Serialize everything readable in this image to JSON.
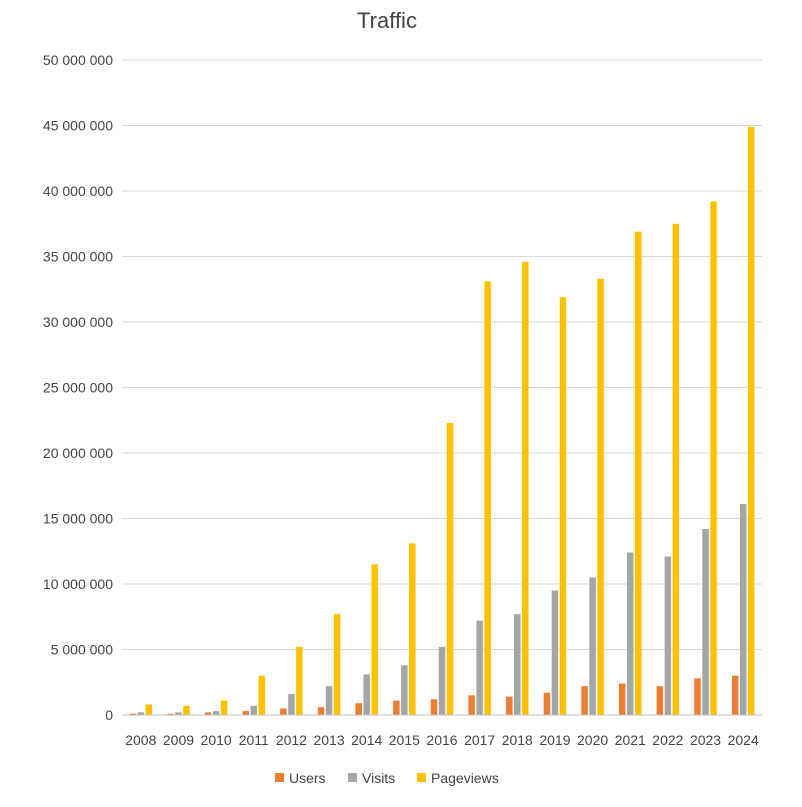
{
  "chart_data": {
    "type": "bar",
    "title": "Traffic",
    "xlabel": "",
    "ylabel": "",
    "ylim": [
      0,
      50000000
    ],
    "yticks": [
      0,
      5000000,
      10000000,
      15000000,
      20000000,
      25000000,
      30000000,
      35000000,
      40000000,
      45000000,
      50000000
    ],
    "ytick_labels": [
      "0",
      "5 000 000",
      "10 000 000",
      "15 000 000",
      "20 000 000",
      "25 000 000",
      "30 000 000",
      "35 000 000",
      "40 000 000",
      "45 000 000",
      "50 000 000"
    ],
    "grid": true,
    "legend_position": "bottom",
    "categories": [
      "2008",
      "2009",
      "2010",
      "2011",
      "2012",
      "2013",
      "2014",
      "2015",
      "2016",
      "2017",
      "2018",
      "2019",
      "2020",
      "2021",
      "2022",
      "2023",
      "2024"
    ],
    "series": [
      {
        "name": "Users",
        "color": "#ED7D31",
        "values": [
          100000,
          100000,
          200000,
          300000,
          500000,
          600000,
          900000,
          1100000,
          1200000,
          1500000,
          1400000,
          1700000,
          2200000,
          2400000,
          2200000,
          2800000,
          3000000
        ]
      },
      {
        "name": "Visits",
        "color": "#A5A5A5",
        "values": [
          200000,
          200000,
          300000,
          700000,
          1600000,
          2200000,
          3100000,
          3800000,
          5200000,
          7200000,
          7700000,
          9500000,
          10500000,
          12400000,
          12100000,
          14200000,
          16100000
        ]
      },
      {
        "name": "Pageviews",
        "color": "#FFC000",
        "values": [
          800000,
          700000,
          1100000,
          3000000,
          5200000,
          7700000,
          11500000,
          13100000,
          22300000,
          33100000,
          34600000,
          31900000,
          33300000,
          36900000,
          37500000,
          39200000,
          44900000
        ]
      }
    ]
  }
}
